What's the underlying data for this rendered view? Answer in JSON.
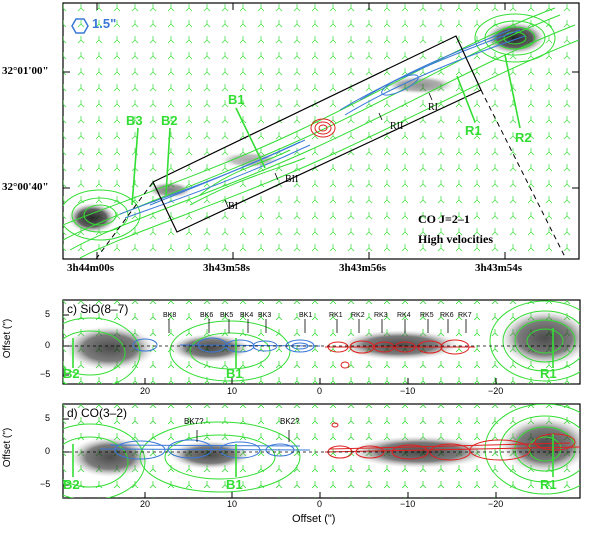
{
  "panel_a": {
    "beam_label": "1.5\"",
    "dec_ticks": [
      "32°01'00\"",
      "32°00'40\""
    ],
    "ra_ticks": [
      "3h44m00s",
      "3h43m58s",
      "3h43m56s",
      "3h43m54s"
    ],
    "labels": {
      "B3": "B3",
      "B2": "B2",
      "B1": "B1",
      "R1": "R1",
      "R2": "R2"
    },
    "knots": [
      "BI",
      "BII",
      "RII",
      "RI"
    ],
    "caption_line1": "CO J=2–1",
    "caption_line2": "High velocities"
  },
  "panel_c": {
    "title": "c) SiO(8–7)",
    "ylabel": "Offset (\")",
    "yticks": [
      "5",
      "0",
      "−5"
    ],
    "knots": [
      "BK8",
      "BK6",
      "BK5",
      "BK4",
      "BK3",
      "BK1",
      "RK1",
      "RK2",
      "RK3",
      "RK4",
      "RK5",
      "RK6",
      "RK7"
    ],
    "labels": {
      "B2": "B2",
      "B1": "B1",
      "R1": "R1"
    }
  },
  "panel_d": {
    "title": "d) CO(3–2)",
    "ylabel": "Offset (\")",
    "yticks": [
      "5",
      "0",
      "−5"
    ],
    "knots": [
      "BK7?",
      "BK2?"
    ],
    "labels": {
      "B2": "B2",
      "B1": "B1",
      "R1": "R1"
    }
  },
  "x_axis": {
    "ticks": [
      "20",
      "10",
      "0",
      "−10",
      "−20"
    ],
    "label": "Offset (\")"
  },
  "colors": {
    "green": "#33dd33",
    "blue": "#3a78d8",
    "red": "#e02020",
    "gray": "#555555"
  }
}
